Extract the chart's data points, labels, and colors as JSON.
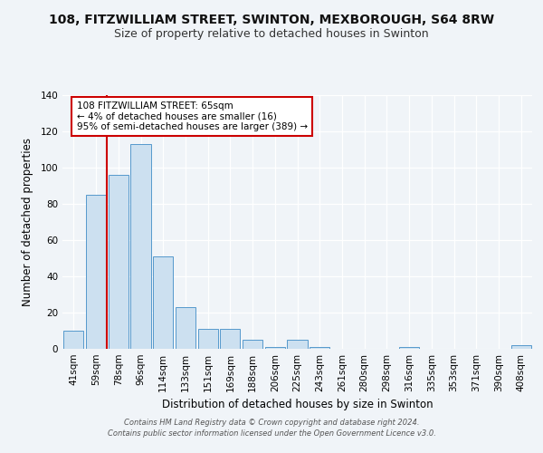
{
  "title1": "108, FITZWILLIAM STREET, SWINTON, MEXBOROUGH, S64 8RW",
  "title2": "Size of property relative to detached houses in Swinton",
  "xlabel": "Distribution of detached houses by size in Swinton",
  "ylabel": "Number of detached properties",
  "categories": [
    "41sqm",
    "59sqm",
    "78sqm",
    "96sqm",
    "114sqm",
    "133sqm",
    "151sqm",
    "169sqm",
    "188sqm",
    "206sqm",
    "225sqm",
    "243sqm",
    "261sqm",
    "280sqm",
    "298sqm",
    "316sqm",
    "335sqm",
    "353sqm",
    "371sqm",
    "390sqm",
    "408sqm"
  ],
  "values": [
    10,
    85,
    96,
    113,
    51,
    23,
    11,
    11,
    5,
    1,
    5,
    1,
    0,
    0,
    0,
    1,
    0,
    0,
    0,
    0,
    2
  ],
  "bar_color": "#cce0f0",
  "bar_edge_color": "#5599cc",
  "vline_color": "#cc0000",
  "annotation_text": "108 FITZWILLIAM STREET: 65sqm\n← 4% of detached houses are smaller (16)\n95% of semi-detached houses are larger (389) →",
  "annotation_box_facecolor": "#ffffff",
  "annotation_box_edgecolor": "#cc0000",
  "ylim": [
    0,
    140
  ],
  "yticks": [
    0,
    20,
    40,
    60,
    80,
    100,
    120,
    140
  ],
  "footer": "Contains HM Land Registry data © Crown copyright and database right 2024.\nContains public sector information licensed under the Open Government Licence v3.0.",
  "bg_color": "#f0f4f8",
  "plot_bg_color": "#f0f4f8",
  "grid_color": "#ffffff",
  "title1_fontsize": 10,
  "title2_fontsize": 9,
  "xlabel_fontsize": 8.5,
  "ylabel_fontsize": 8.5,
  "tick_fontsize": 7.5,
  "footer_fontsize": 6.0
}
